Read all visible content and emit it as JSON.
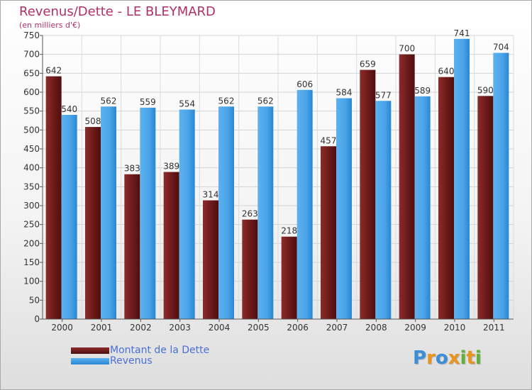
{
  "header": {
    "title": "Revenus/Dette - LE BLEYMARD",
    "subtitle": "(en milliers d'€)"
  },
  "legend": {
    "items": [
      {
        "label": "Montant de la Dette",
        "color": "#6b1a1a"
      },
      {
        "label": "Revenus",
        "color": "#4aa3e8"
      }
    ]
  },
  "logo": {
    "text": "Proxiti",
    "letters": [
      {
        "ch": "P",
        "color": "#3a8fd8"
      },
      {
        "ch": "r",
        "color": "#e8941f"
      },
      {
        "ch": "o",
        "color": "#3a8fd8"
      },
      {
        "ch": "x",
        "color": "#e8941f"
      },
      {
        "ch": "i",
        "color": "#5fb233"
      },
      {
        "ch": "t",
        "color": "#e8941f"
      },
      {
        "ch": "i",
        "color": "#5fb233"
      }
    ]
  },
  "chart_data": {
    "type": "bar",
    "categories": [
      "2000",
      "2001",
      "2002",
      "2003",
      "2004",
      "2005",
      "2006",
      "2007",
      "2008",
      "2009",
      "2010",
      "2011"
    ],
    "series": [
      {
        "name": "Montant de la Dette",
        "values": [
          642,
          508,
          383,
          389,
          314,
          263,
          218,
          457,
          659,
          700,
          640,
          590
        ],
        "color": "#7a2020"
      },
      {
        "name": "Revenus",
        "values": [
          540,
          562,
          559,
          554,
          562,
          562,
          606,
          584,
          577,
          589,
          741,
          704
        ],
        "color": "#4aa3e8"
      }
    ],
    "ylim": [
      0,
      750
    ],
    "yticks": [
      0,
      50,
      100,
      150,
      200,
      250,
      300,
      350,
      400,
      450,
      500,
      550,
      600,
      650,
      700,
      750
    ],
    "grid": true
  }
}
